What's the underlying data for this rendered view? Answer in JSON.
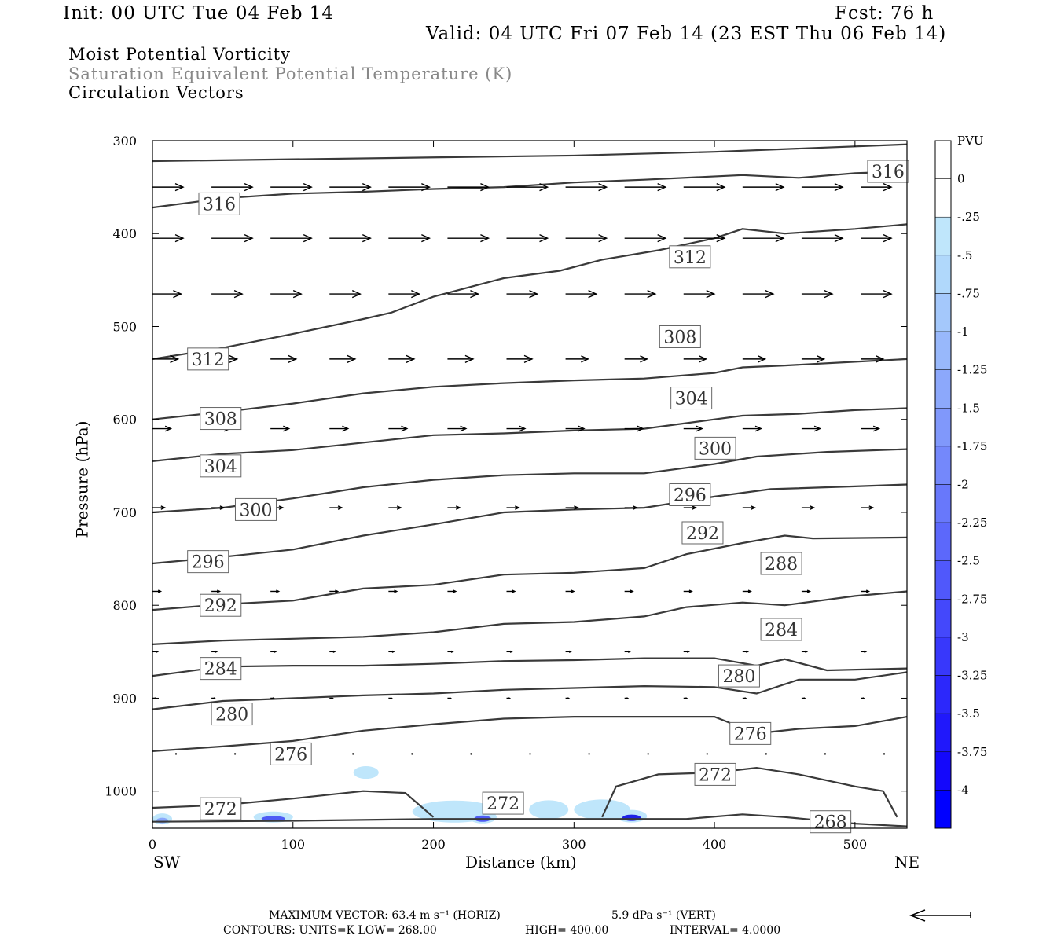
{
  "header": {
    "init": "Init: 00 UTC Tue 04 Feb 14",
    "fcst": "Fcst:   76 h",
    "valid": "Valid: 04 UTC Fri 07 Feb 14 (23 EST Thu 06 Feb 14)",
    "field1": "Moist Potential Vorticity",
    "field2": "Saturation Equivalent Potential Temperature (K)",
    "field3": "Circulation Vectors"
  },
  "footer": {
    "max_vector": "MAXIMUM VECTOR:  63.4 m s⁻¹ (HORIZ)",
    "max_vert": "5.9 dPa s⁻¹ (VERT)",
    "contours_units": "CONTOURS:  UNITS=K  LOW=   268.00",
    "contours_high": "HIGH=   400.00",
    "contours_interval": "INTERVAL=    4.0000"
  },
  "colors": {
    "contour": "#3a3a3a",
    "axis": "#000000",
    "pv_shading": "#8fc8f0"
  },
  "chart_data": {
    "type": "cross-section",
    "xlabel": "Distance (km)",
    "ylabel": "Pressure (hPa)",
    "x_left_label": "SW",
    "x_right_label": "NE",
    "xlim": [
      0,
      537
    ],
    "ylim": [
      1040,
      300
    ],
    "x_ticks": [
      0,
      100,
      200,
      300,
      400,
      500
    ],
    "y_ticks": [
      300,
      400,
      500,
      600,
      700,
      800,
      900,
      1000
    ],
    "colorbar": {
      "title": "PVU",
      "levels": [
        "0",
        "-.25",
        "-.5",
        "-.75",
        "-1",
        "-1.25",
        "-1.5",
        "-1.75",
        "-2",
        "-2.25",
        "-2.5",
        "-2.75",
        "-3",
        "-3.25",
        "-3.5",
        "-3.75",
        "-4"
      ],
      "colors": [
        "#ffffff",
        "#ffffff",
        "#bfe6fb",
        "#b0d8fb",
        "#a4c8fb",
        "#98b8fb",
        "#8ca8fb",
        "#8098fb",
        "#7488fb",
        "#6878fb",
        "#5c68fb",
        "#5058fb",
        "#4448fb",
        "#3838fb",
        "#2c28fb",
        "#2018fb",
        "#1408fb",
        "#0000ff"
      ]
    },
    "contour_lines": [
      {
        "label": "316",
        "points": [
          [
            0,
            372
          ],
          [
            50,
            362
          ],
          [
            100,
            357
          ],
          [
            150,
            355
          ],
          [
            200,
            352
          ],
          [
            250,
            350
          ],
          [
            300,
            345
          ],
          [
            350,
            342
          ],
          [
            420,
            337
          ],
          [
            460,
            340
          ],
          [
            500,
            335
          ],
          [
            537,
            333
          ]
        ]
      },
      {
        "label": "312",
        "points": [
          [
            0,
            535
          ],
          [
            50,
            523
          ],
          [
            100,
            508
          ],
          [
            150,
            492
          ],
          [
            170,
            485
          ],
          [
            200,
            468
          ],
          [
            250,
            448
          ],
          [
            290,
            440
          ],
          [
            320,
            428
          ],
          [
            360,
            418
          ],
          [
            400,
            405
          ],
          [
            420,
            395
          ],
          [
            450,
            400
          ],
          [
            500,
            395
          ],
          [
            537,
            390
          ]
        ]
      },
      {
        "label": "308",
        "points": [
          [
            0,
            600
          ],
          [
            50,
            592
          ],
          [
            100,
            583
          ],
          [
            150,
            572
          ],
          [
            200,
            565
          ],
          [
            250,
            561
          ],
          [
            300,
            558
          ],
          [
            350,
            556
          ],
          [
            400,
            550
          ],
          [
            420,
            544
          ],
          [
            450,
            542
          ],
          [
            500,
            538
          ],
          [
            537,
            535
          ]
        ]
      },
      {
        "label": "304",
        "points": [
          [
            0,
            645
          ],
          [
            50,
            637
          ],
          [
            100,
            633
          ],
          [
            150,
            625
          ],
          [
            200,
            617
          ],
          [
            250,
            615
          ],
          [
            300,
            612
          ],
          [
            350,
            610
          ],
          [
            400,
            600
          ],
          [
            420,
            596
          ],
          [
            460,
            594
          ],
          [
            500,
            590
          ],
          [
            537,
            588
          ]
        ]
      },
      {
        "label": "300",
        "points": [
          [
            0,
            700
          ],
          [
            50,
            695
          ],
          [
            100,
            685
          ],
          [
            150,
            673
          ],
          [
            200,
            665
          ],
          [
            250,
            660
          ],
          [
            300,
            658
          ],
          [
            350,
            658
          ],
          [
            400,
            648
          ],
          [
            430,
            640
          ],
          [
            480,
            635
          ],
          [
            537,
            632
          ]
        ]
      },
      {
        "label": "296",
        "points": [
          [
            0,
            755
          ],
          [
            50,
            748
          ],
          [
            100,
            740
          ],
          [
            150,
            725
          ],
          [
            200,
            713
          ],
          [
            250,
            700
          ],
          [
            300,
            697
          ],
          [
            350,
            695
          ],
          [
            400,
            683
          ],
          [
            440,
            675
          ],
          [
            500,
            672
          ],
          [
            537,
            670
          ]
        ]
      },
      {
        "label": "292",
        "points": [
          [
            0,
            805
          ],
          [
            50,
            799
          ],
          [
            100,
            795
          ],
          [
            150,
            782
          ],
          [
            200,
            778
          ],
          [
            250,
            767
          ],
          [
            300,
            765
          ],
          [
            350,
            760
          ],
          [
            380,
            745
          ],
          [
            420,
            733
          ],
          [
            450,
            725
          ],
          [
            470,
            728
          ],
          [
            537,
            727
          ]
        ]
      },
      {
        "label": "288",
        "points": [
          [
            0,
            842
          ],
          [
            50,
            838
          ],
          [
            100,
            836
          ],
          [
            150,
            834
          ],
          [
            200,
            829
          ],
          [
            250,
            820
          ],
          [
            300,
            818
          ],
          [
            350,
            812
          ],
          [
            380,
            802
          ],
          [
            420,
            797
          ],
          [
            450,
            800
          ],
          [
            500,
            790
          ],
          [
            537,
            785
          ]
        ]
      },
      {
        "label": "284",
        "points": [
          [
            0,
            876
          ],
          [
            50,
            866
          ],
          [
            100,
            865
          ],
          [
            150,
            865
          ],
          [
            200,
            863
          ],
          [
            250,
            860
          ],
          [
            300,
            859
          ],
          [
            350,
            857
          ],
          [
            400,
            857
          ],
          [
            430,
            865
          ],
          [
            450,
            858
          ],
          [
            480,
            870
          ],
          [
            537,
            868
          ]
        ]
      },
      {
        "label": "280",
        "points": [
          [
            0,
            912
          ],
          [
            50,
            903
          ],
          [
            100,
            900
          ],
          [
            150,
            897
          ],
          [
            200,
            895
          ],
          [
            250,
            891
          ],
          [
            300,
            889
          ],
          [
            350,
            887
          ],
          [
            400,
            888
          ],
          [
            430,
            895
          ],
          [
            460,
            880
          ],
          [
            500,
            880
          ],
          [
            537,
            872
          ]
        ]
      },
      {
        "label": "276",
        "points": [
          [
            0,
            957
          ],
          [
            50,
            952
          ],
          [
            100,
            946
          ],
          [
            150,
            935
          ],
          [
            200,
            928
          ],
          [
            250,
            922
          ],
          [
            300,
            920
          ],
          [
            350,
            920
          ],
          [
            400,
            920
          ],
          [
            430,
            938
          ],
          [
            460,
            933
          ],
          [
            500,
            930
          ],
          [
            537,
            920
          ]
        ]
      },
      {
        "label": "272",
        "points": [
          [
            0,
            1018
          ],
          [
            50,
            1015
          ],
          [
            100,
            1008
          ],
          [
            150,
            1000
          ],
          [
            180,
            1002
          ],
          [
            200,
            1028
          ]
        ]
      },
      {
        "label": "272",
        "points": [
          [
            320,
            1028
          ],
          [
            330,
            995
          ],
          [
            360,
            982
          ],
          [
            400,
            980
          ],
          [
            430,
            975
          ],
          [
            460,
            982
          ],
          [
            500,
            995
          ],
          [
            520,
            1000
          ],
          [
            530,
            1028
          ]
        ]
      },
      {
        "label": "268",
        "points": [
          [
            0,
            1033
          ],
          [
            100,
            1032
          ],
          [
            200,
            1030
          ],
          [
            300,
            1030
          ],
          [
            380,
            1030
          ],
          [
            420,
            1025
          ],
          [
            450,
            1028
          ],
          [
            500,
            1035
          ],
          [
            537,
            1038
          ]
        ]
      }
    ],
    "label_positions": [
      {
        "text": "316",
        "x": 33,
        "y": 368
      },
      {
        "text": "316",
        "x": 509,
        "y": 333
      },
      {
        "text": "312",
        "x": 25,
        "y": 535
      },
      {
        "text": "312",
        "x": 368,
        "y": 425
      },
      {
        "text": "308",
        "x": 34,
        "y": 599
      },
      {
        "text": "308",
        "x": 361,
        "y": 511
      },
      {
        "text": "304",
        "x": 34,
        "y": 650
      },
      {
        "text": "304",
        "x": 369,
        "y": 577
      },
      {
        "text": "300",
        "x": 59,
        "y": 697
      },
      {
        "text": "300",
        "x": 386,
        "y": 631
      },
      {
        "text": "296",
        "x": 25,
        "y": 753
      },
      {
        "text": "296",
        "x": 368,
        "y": 681
      },
      {
        "text": "292",
        "x": 34,
        "y": 800
      },
      {
        "text": "292",
        "x": 377,
        "y": 722
      },
      {
        "text": "288",
        "x": 433,
        "y": 755
      },
      {
        "text": "284",
        "x": 34,
        "y": 868
      },
      {
        "text": "284",
        "x": 433,
        "y": 826
      },
      {
        "text": "280",
        "x": 42,
        "y": 917
      },
      {
        "text": "280",
        "x": 403,
        "y": 876
      },
      {
        "text": "276",
        "x": 84,
        "y": 960
      },
      {
        "text": "276",
        "x": 411,
        "y": 938
      },
      {
        "text": "272",
        "x": 34,
        "y": 1019
      },
      {
        "text": "272",
        "x": 235,
        "y": 1013
      },
      {
        "text": "272",
        "x": 386,
        "y": 982
      },
      {
        "text": "268",
        "x": 468,
        "y": 1033
      }
    ],
    "vectors": [
      {
        "p": 350,
        "u": [
          30,
          40,
          40,
          40,
          40,
          40,
          40,
          40,
          40,
          40,
          40,
          40,
          30
        ]
      },
      {
        "p": 405,
        "u": [
          30,
          40,
          40,
          40,
          40,
          40,
          40,
          40,
          40,
          40,
          40,
          40,
          30
        ]
      },
      {
        "p": 465,
        "u": [
          28,
          30,
          30,
          30,
          30,
          30,
          30,
          30,
          30,
          30,
          30,
          30,
          30
        ]
      },
      {
        "p": 535,
        "u": [
          25,
          25,
          25,
          25,
          25,
          25,
          25,
          22,
          22,
          22,
          22,
          22,
          22
        ]
      },
      {
        "p": 610,
        "u": [
          18,
          18,
          18,
          18,
          18,
          18,
          18,
          18,
          18,
          18,
          18,
          18,
          18
        ]
      },
      {
        "p": 695,
        "u": [
          12,
          12,
          12,
          12,
          12,
          12,
          12,
          12,
          12,
          12,
          12,
          12,
          12
        ]
      },
      {
        "p": 785,
        "u": [
          8,
          8,
          8,
          8,
          8,
          8,
          8,
          8,
          8,
          8,
          8,
          8,
          8
        ]
      },
      {
        "p": 850,
        "u": [
          5,
          5,
          5,
          5,
          5,
          5,
          5,
          5,
          5,
          5,
          5,
          5,
          5
        ]
      },
      {
        "p": 900,
        "u": [
          3,
          3,
          3,
          3,
          3,
          3,
          3,
          3,
          3,
          3,
          3,
          3,
          3
        ]
      },
      {
        "p": 960,
        "u": [
          1,
          1,
          1,
          1,
          1,
          1,
          1,
          1,
          1,
          1,
          1,
          1,
          1
        ]
      }
    ],
    "pv_patches": [
      {
        "x": 0,
        "p": 1030,
        "w": 14,
        "h": 10,
        "v": -1.5
      },
      {
        "x": 72,
        "p": 1028,
        "w": 28,
        "h": 10,
        "v": -2.5
      },
      {
        "x": 143,
        "p": 980,
        "w": 18,
        "h": 12,
        "v": -0.5
      },
      {
        "x": 185,
        "p": 1022,
        "w": 60,
        "h": 24,
        "v": -0.75
      },
      {
        "x": 225,
        "p": 1028,
        "w": 20,
        "h": 12,
        "v": -3
      },
      {
        "x": 268,
        "p": 1020,
        "w": 28,
        "h": 20,
        "v": -0.5
      },
      {
        "x": 300,
        "p": 1020,
        "w": 40,
        "h": 22,
        "v": -0.75
      },
      {
        "x": 330,
        "p": 1027,
        "w": 22,
        "h": 12,
        "v": -3.5
      }
    ]
  }
}
